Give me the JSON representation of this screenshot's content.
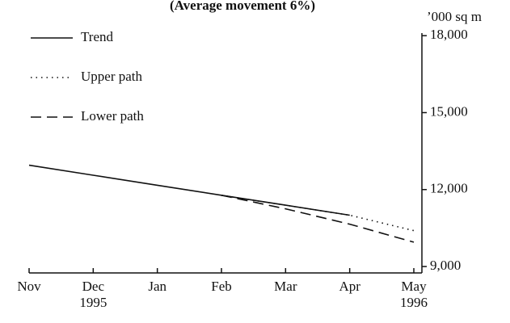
{
  "chart_data": {
    "type": "line",
    "title": "(Average movement 6%)",
    "y_label": "’000 sq m",
    "categories": [
      "Nov",
      "Dec",
      "Jan",
      "Feb",
      "Mar",
      "Apr",
      "May"
    ],
    "sublabels": [
      null,
      "1995",
      null,
      null,
      null,
      null,
      "1996"
    ],
    "series": [
      {
        "name": "Trend",
        "color": "#111111",
        "style": "solid",
        "values": [
          12950,
          12560,
          12170,
          11780,
          11390,
          11000,
          null
        ]
      },
      {
        "name": "Upper path",
        "color": "#111111",
        "style": "dotted",
        "values": [
          null,
          null,
          null,
          11780,
          11390,
          11000,
          10400
        ]
      },
      {
        "name": "Lower path",
        "color": "#111111",
        "style": "dashed",
        "values": [
          null,
          null,
          null,
          11780,
          11250,
          10650,
          9950
        ]
      }
    ],
    "ylim": [
      8750,
      18100
    ],
    "yticks": [
      {
        "value": 9000,
        "label": "9,000"
      },
      {
        "value": 12000,
        "label": "12,000"
      },
      {
        "value": 15000,
        "label": "15,000"
      },
      {
        "value": 18000,
        "label": "18,000"
      }
    ],
    "y_axis_side": "right",
    "legend": "upper left",
    "grid": false
  }
}
